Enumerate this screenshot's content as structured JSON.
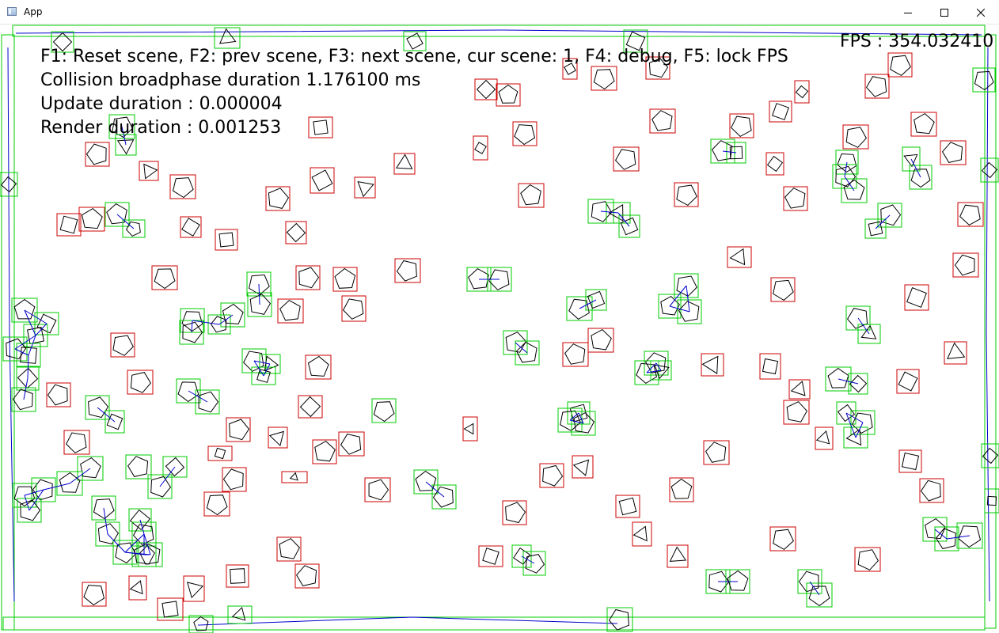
{
  "window": {
    "title": "App",
    "icon": "app-window-icon",
    "controls": [
      "minimize-icon",
      "maximize-icon",
      "close-icon"
    ]
  },
  "hud": {
    "controls_line": "F1: Reset scene, F2: prev scene, F3: next scene, cur scene: 1, F4: debug, F5: lock FPS",
    "broadphase_line": "Collision broadphase duration 1.176100 ms",
    "update_line": "Update duration : 0.000004",
    "render_line": "Render duration : 0.001253",
    "fps_line": "FPS : 354.032410"
  },
  "colors": {
    "background": "#ffffff",
    "aabb_idle": "#cc0000",
    "aabb_colliding": "#00cc00",
    "shape_outline": "#000000",
    "contact_line": "#0000cc"
  }
}
